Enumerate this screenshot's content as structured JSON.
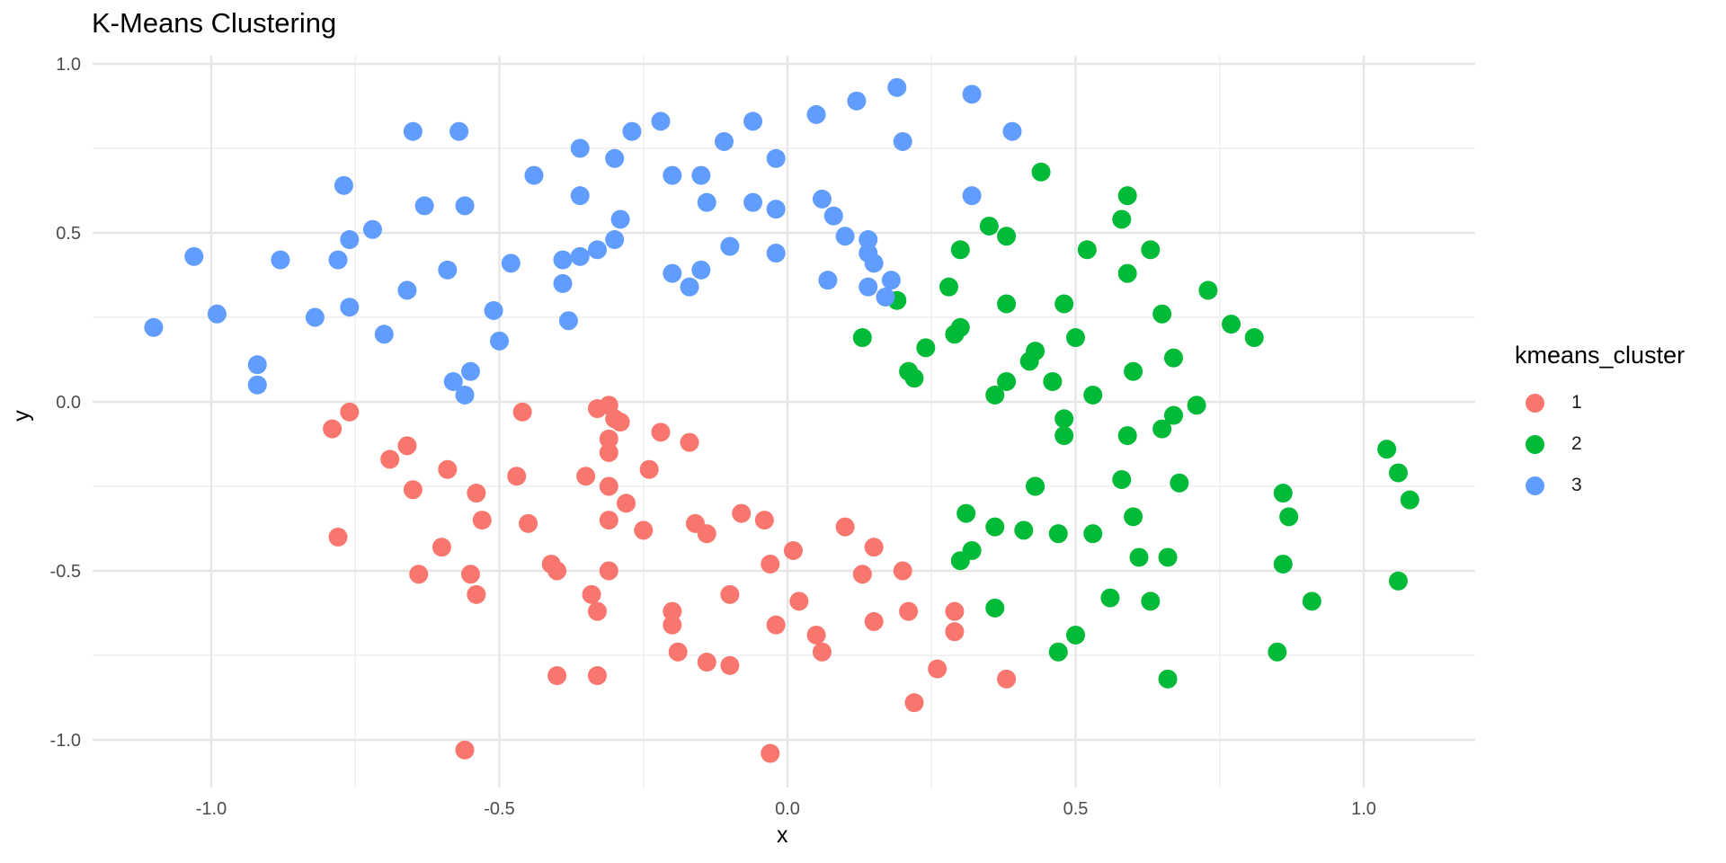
{
  "chart_data": {
    "type": "scatter",
    "title": "K-Means Clustering",
    "xlabel": "x",
    "ylabel": "y",
    "xlim": [
      -1.2,
      1.2
    ],
    "ylim": [
      -1.1,
      1.02
    ],
    "x_ticks": [
      -1.0,
      -0.5,
      0.0,
      0.5,
      1.0
    ],
    "x_tick_labels": [
      "-1.0",
      "-0.5",
      "0.0",
      "0.5",
      "1.0"
    ],
    "y_ticks": [
      -1.0,
      -0.5,
      0.0,
      0.5,
      1.0
    ],
    "y_tick_labels": [
      "-1.0",
      "-0.5",
      "0.0",
      "0.5",
      "1.0"
    ],
    "grid": true,
    "legend": {
      "title": "kmeans_cluster",
      "position": "right"
    },
    "series": [
      {
        "name": "1",
        "color": "#F8766D",
        "points": [
          [
            -0.79,
            -0.08
          ],
          [
            -0.76,
            -0.03
          ],
          [
            -0.78,
            -0.4
          ],
          [
            -0.69,
            -0.17
          ],
          [
            -0.66,
            -0.13
          ],
          [
            -0.65,
            -0.26
          ],
          [
            -0.64,
            -0.51
          ],
          [
            -0.59,
            -0.2
          ],
          [
            -0.6,
            -0.43
          ],
          [
            -0.56,
            -1.03
          ],
          [
            -0.55,
            -0.51
          ],
          [
            -0.54,
            -0.27
          ],
          [
            -0.54,
            -0.57
          ],
          [
            -0.53,
            -0.35
          ],
          [
            -0.47,
            -0.22
          ],
          [
            -0.46,
            -0.03
          ],
          [
            -0.45,
            -0.36
          ],
          [
            -0.41,
            -0.48
          ],
          [
            -0.4,
            -0.5
          ],
          [
            -0.4,
            -0.81
          ],
          [
            -0.35,
            -0.22
          ],
          [
            -0.34,
            -0.57
          ],
          [
            -0.33,
            -0.02
          ],
          [
            -0.33,
            -0.62
          ],
          [
            -0.33,
            -0.81
          ],
          [
            -0.31,
            -0.01
          ],
          [
            -0.31,
            -0.11
          ],
          [
            -0.31,
            -0.15
          ],
          [
            -0.31,
            -0.5
          ],
          [
            -0.31,
            -0.25
          ],
          [
            -0.31,
            -0.35
          ],
          [
            -0.3,
            -0.05
          ],
          [
            -0.29,
            -0.06
          ],
          [
            -0.28,
            -0.3
          ],
          [
            -0.25,
            -0.38
          ],
          [
            -0.24,
            -0.2
          ],
          [
            -0.22,
            -0.09
          ],
          [
            -0.2,
            -0.62
          ],
          [
            -0.2,
            -0.66
          ],
          [
            -0.19,
            -0.74
          ],
          [
            -0.17,
            -0.12
          ],
          [
            -0.16,
            -0.36
          ],
          [
            -0.14,
            -0.39
          ],
          [
            -0.14,
            -0.77
          ],
          [
            -0.1,
            -0.57
          ],
          [
            -0.1,
            -0.78
          ],
          [
            -0.08,
            -0.33
          ],
          [
            -0.04,
            -0.35
          ],
          [
            -0.03,
            -0.48
          ],
          [
            -0.02,
            -0.66
          ],
          [
            -0.03,
            -1.04
          ],
          [
            0.01,
            -0.44
          ],
          [
            0.02,
            -0.59
          ],
          [
            0.05,
            -0.69
          ],
          [
            0.06,
            -0.74
          ],
          [
            0.1,
            -0.37
          ],
          [
            0.13,
            -0.51
          ],
          [
            0.15,
            -0.65
          ],
          [
            0.15,
            -0.43
          ],
          [
            0.2,
            -0.5
          ],
          [
            0.21,
            -0.62
          ],
          [
            0.22,
            -0.89
          ],
          [
            0.26,
            -0.79
          ],
          [
            0.29,
            -0.68
          ],
          [
            0.29,
            -0.62
          ],
          [
            0.38,
            -0.82
          ]
        ]
      },
      {
        "name": "2",
        "color": "#00BA38",
        "points": [
          [
            0.13,
            0.19
          ],
          [
            0.19,
            0.3
          ],
          [
            0.21,
            0.09
          ],
          [
            0.22,
            0.07
          ],
          [
            0.24,
            0.16
          ],
          [
            0.28,
            0.34
          ],
          [
            0.29,
            0.2
          ],
          [
            0.3,
            0.22
          ],
          [
            0.3,
            0.45
          ],
          [
            0.3,
            -0.47
          ],
          [
            0.31,
            -0.33
          ],
          [
            0.32,
            -0.44
          ],
          [
            0.35,
            0.52
          ],
          [
            0.36,
            -0.61
          ],
          [
            0.36,
            0.02
          ],
          [
            0.36,
            -0.37
          ],
          [
            0.38,
            0.49
          ],
          [
            0.38,
            0.06
          ],
          [
            0.38,
            0.29
          ],
          [
            0.41,
            -0.38
          ],
          [
            0.42,
            0.12
          ],
          [
            0.43,
            0.15
          ],
          [
            0.43,
            -0.25
          ],
          [
            0.43,
            -0.25
          ],
          [
            0.44,
            0.68
          ],
          [
            0.46,
            0.06
          ],
          [
            0.47,
            -0.39
          ],
          [
            0.47,
            -0.74
          ],
          [
            0.48,
            -0.05
          ],
          [
            0.48,
            -0.1
          ],
          [
            0.48,
            0.29
          ],
          [
            0.5,
            0.19
          ],
          [
            0.5,
            -0.69
          ],
          [
            0.52,
            0.45
          ],
          [
            0.53,
            -0.39
          ],
          [
            0.53,
            0.02
          ],
          [
            0.56,
            -0.58
          ],
          [
            0.58,
            0.54
          ],
          [
            0.58,
            -0.23
          ],
          [
            0.59,
            0.38
          ],
          [
            0.59,
            0.61
          ],
          [
            0.59,
            -0.1
          ],
          [
            0.6,
            -0.34
          ],
          [
            0.6,
            0.09
          ],
          [
            0.61,
            -0.46
          ],
          [
            0.63,
            0.45
          ],
          [
            0.63,
            -0.59
          ],
          [
            0.65,
            0.26
          ],
          [
            0.65,
            -0.08
          ],
          [
            0.66,
            -0.46
          ],
          [
            0.66,
            -0.82
          ],
          [
            0.67,
            -0.04
          ],
          [
            0.67,
            0.13
          ],
          [
            0.68,
            -0.24
          ],
          [
            0.71,
            -0.01
          ],
          [
            0.73,
            0.33
          ],
          [
            0.77,
            0.23
          ],
          [
            0.81,
            0.19
          ],
          [
            0.85,
            -0.74
          ],
          [
            0.86,
            -0.48
          ],
          [
            0.86,
            -0.27
          ],
          [
            0.87,
            -0.34
          ],
          [
            0.91,
            -0.59
          ],
          [
            1.04,
            -0.14
          ],
          [
            1.06,
            -0.21
          ],
          [
            1.06,
            -0.53
          ],
          [
            1.08,
            -0.29
          ]
        ]
      },
      {
        "name": "3",
        "color": "#619CFF",
        "points": [
          [
            -1.1,
            0.22
          ],
          [
            -1.03,
            0.43
          ],
          [
            -0.99,
            0.26
          ],
          [
            -0.92,
            0.11
          ],
          [
            -0.92,
            0.05
          ],
          [
            -0.88,
            0.42
          ],
          [
            -0.82,
            0.25
          ],
          [
            -0.78,
            0.42
          ],
          [
            -0.77,
            0.64
          ],
          [
            -0.76,
            0.48
          ],
          [
            -0.76,
            0.28
          ],
          [
            -0.72,
            0.51
          ],
          [
            -0.7,
            0.2
          ],
          [
            -0.66,
            0.33
          ],
          [
            -0.65,
            0.8
          ],
          [
            -0.63,
            0.58
          ],
          [
            -0.59,
            0.39
          ],
          [
            -0.58,
            0.06
          ],
          [
            -0.57,
            0.8
          ],
          [
            -0.56,
            0.58
          ],
          [
            -0.56,
            0.02
          ],
          [
            -0.55,
            0.09
          ],
          [
            -0.51,
            0.27
          ],
          [
            -0.5,
            0.18
          ],
          [
            -0.48,
            0.41
          ],
          [
            -0.44,
            0.67
          ],
          [
            -0.39,
            0.42
          ],
          [
            -0.39,
            0.35
          ],
          [
            -0.38,
            0.24
          ],
          [
            -0.36,
            0.75
          ],
          [
            -0.36,
            0.43
          ],
          [
            -0.36,
            0.61
          ],
          [
            -0.33,
            0.45
          ],
          [
            -0.3,
            0.48
          ],
          [
            -0.3,
            0.72
          ],
          [
            -0.29,
            0.54
          ],
          [
            -0.27,
            0.8
          ],
          [
            -0.22,
            0.83
          ],
          [
            -0.2,
            0.38
          ],
          [
            -0.2,
            0.67
          ],
          [
            -0.17,
            0.34
          ],
          [
            -0.15,
            0.39
          ],
          [
            -0.15,
            0.67
          ],
          [
            -0.14,
            0.59
          ],
          [
            -0.11,
            0.77
          ],
          [
            -0.1,
            0.46
          ],
          [
            -0.06,
            0.59
          ],
          [
            -0.06,
            0.83
          ],
          [
            -0.02,
            0.57
          ],
          [
            -0.02,
            0.72
          ],
          [
            -0.02,
            0.44
          ],
          [
            0.05,
            0.85
          ],
          [
            0.06,
            0.6
          ],
          [
            0.07,
            0.36
          ],
          [
            0.08,
            0.55
          ],
          [
            0.1,
            0.49
          ],
          [
            0.12,
            0.89
          ],
          [
            0.14,
            0.34
          ],
          [
            0.14,
            0.48
          ],
          [
            0.14,
            0.44
          ],
          [
            0.15,
            0.41
          ],
          [
            0.17,
            0.31
          ],
          [
            0.18,
            0.36
          ],
          [
            0.19,
            0.93
          ],
          [
            0.2,
            0.77
          ],
          [
            0.32,
            0.91
          ],
          [
            0.32,
            0.61
          ],
          [
            0.39,
            0.8
          ]
        ]
      }
    ]
  }
}
